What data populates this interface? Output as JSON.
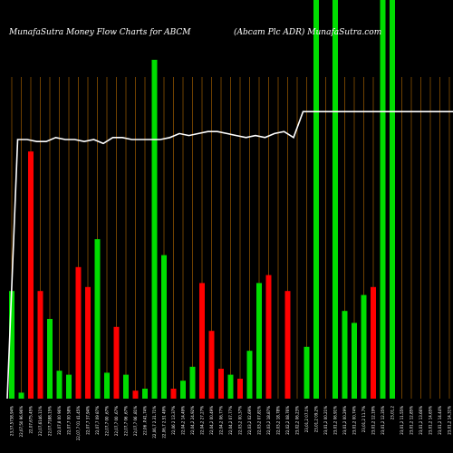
{
  "header": {
    "left": "MunafaSutra  Money Flow  Charts for ABCM",
    "right": "(Abcam Plc ADR) MunafaSutra.com"
  },
  "chart_data": {
    "type": "bar",
    "ylim": [
      0,
      100
    ],
    "grid": "vertical",
    "categories": [
      "23,37,5738.94%",
      "22,07,50 96.96%",
      "22,07,675.45%",
      "22,07,6146.11%",
      "22,07,7188.15%",
      "22,07,8 00 96%",
      "22,07,7 00 58%",
      "22,07,7 01 41.45%",
      "22,07,7 37.94%",
      "22,07,7 09 87%",
      "22,07,7 00 .67%",
      "22,07,7 00 .67%",
      "22,07,7 06 .67%",
      "22,07,7 06 .81%",
      "22,06 .P.41.74%",
      "22,06,7 2.31.71%",
      "22,06,7 2.51 49%",
      "22,06 2 13.37%",
      "22,04,2 14.49%",
      "22,04,2 24.92%",
      "22,04,2 27.27%",
      "22,04,2 00.49%",
      "22,04,2 06.77%",
      "22,04,2 07.77%",
      "22,03,2 00.37%",
      "22,03,2 02.69%",
      "22,03,2 07.81%",
      "22,03,2 18.87%",
      "22,03,2 18.78%",
      "22,02,2 08.76%",
      "23,02,2 06.23%",
      "23,01,2 07.1%",
      "23,01,2 09.2%",
      "23,01,2 00.21%",
      "23,01,2 06.91%",
      "23,01,2 00.29%",
      "23,01,2 00.74%",
      "23,01,2 11.7%",
      "23,01,2 12.19%",
      "23,01,2 12.35%",
      "23,01,2",
      "23,01,2 11.55%",
      "23,01,2 12.85%",
      "23,01,2 13.66%",
      "23,01,2 14.65%",
      "23,01,2 14.44%",
      "23,01,2 14.31%",
      "23,01,2 14.31%"
    ],
    "series": [
      {
        "values": [
          27,
          1.5,
          62,
          27,
          20,
          7,
          6,
          33,
          28,
          40,
          6.5,
          18,
          6,
          2,
          2.5,
          85,
          36,
          2.5,
          4.5,
          8,
          29,
          17,
          7.5,
          6,
          5,
          12,
          29,
          31,
          0,
          27,
          0,
          13,
          100,
          0,
          100,
          22,
          19,
          26,
          28,
          100,
          100,
          0,
          0,
          0,
          0,
          0,
          0,
          0
        ],
        "colors": [
          "#00dd00",
          "#00dd00",
          "#ff0000",
          "#ff0000",
          "#00dd00",
          "#00dd00",
          "#00dd00",
          "#ff0000",
          "#ff0000",
          "#00dd00",
          "#00dd00",
          "#ff0000",
          "#00dd00",
          "#ff0000",
          "#00dd00",
          "#00dd00",
          "#00dd00",
          "#ff0000",
          "#00dd00",
          "#00dd00",
          "#ff0000",
          "#ff0000",
          "#ff0000",
          "#00dd00",
          "#ff0000",
          "#00dd00",
          "#00dd00",
          "#ff0000",
          "#000000",
          "#ff0000",
          "#000000",
          "#00dd00",
          "#00dd00",
          "#000000",
          "#00dd00",
          "#00dd00",
          "#00dd00",
          "#00dd00",
          "#ff0000",
          "#00dd00",
          "#00dd00",
          "#000000",
          "#000000",
          "#000000",
          "#000000",
          "#000000",
          "#000000",
          "#000000"
        ]
      },
      {
        "type": "line",
        "color": "#ffffff",
        "values": [
          0,
          65,
          65,
          64.5,
          64.5,
          65.5,
          65,
          65,
          64.5,
          65,
          64,
          65.5,
          65.5,
          65,
          65,
          65,
          65,
          65.5,
          66.5,
          66,
          66.5,
          67,
          67,
          66.5,
          66,
          65.5,
          66,
          65.5,
          66.5,
          67,
          65.5,
          72,
          72,
          72,
          72,
          72,
          72,
          72,
          72,
          72,
          72,
          72,
          72,
          72,
          72,
          72,
          72,
          72
        ]
      }
    ]
  }
}
